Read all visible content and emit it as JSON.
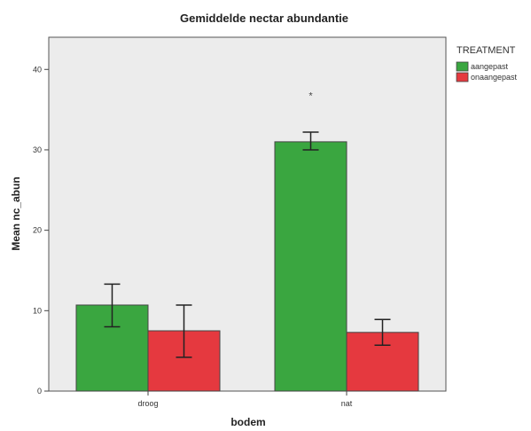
{
  "chart_data": {
    "type": "bar",
    "title": "Gemiddelde nectar abundantie",
    "xlabel": "bodem",
    "ylabel": "Mean nc_abun",
    "categories": [
      "droog",
      "nat"
    ],
    "ylim": [
      0,
      44
    ],
    "yticks": [
      0,
      10,
      20,
      30,
      40
    ],
    "grid": false,
    "legend": {
      "title": "TREATMENT",
      "placement": "right"
    },
    "series": [
      {
        "name": "aangepast",
        "color": "#3aa640",
        "values": [
          10.7,
          31.0
        ],
        "error_low": [
          8.0,
          30.0
        ],
        "error_high": [
          13.3,
          32.2
        ]
      },
      {
        "name": "onaangepast",
        "color": "#e5393f",
        "values": [
          7.5,
          7.3
        ],
        "error_low": [
          4.2,
          5.7
        ],
        "error_high": [
          10.7,
          8.9
        ]
      }
    ],
    "annotations": [
      {
        "text": "*",
        "category": "nat",
        "series": "aangepast",
        "y": 37
      }
    ]
  }
}
